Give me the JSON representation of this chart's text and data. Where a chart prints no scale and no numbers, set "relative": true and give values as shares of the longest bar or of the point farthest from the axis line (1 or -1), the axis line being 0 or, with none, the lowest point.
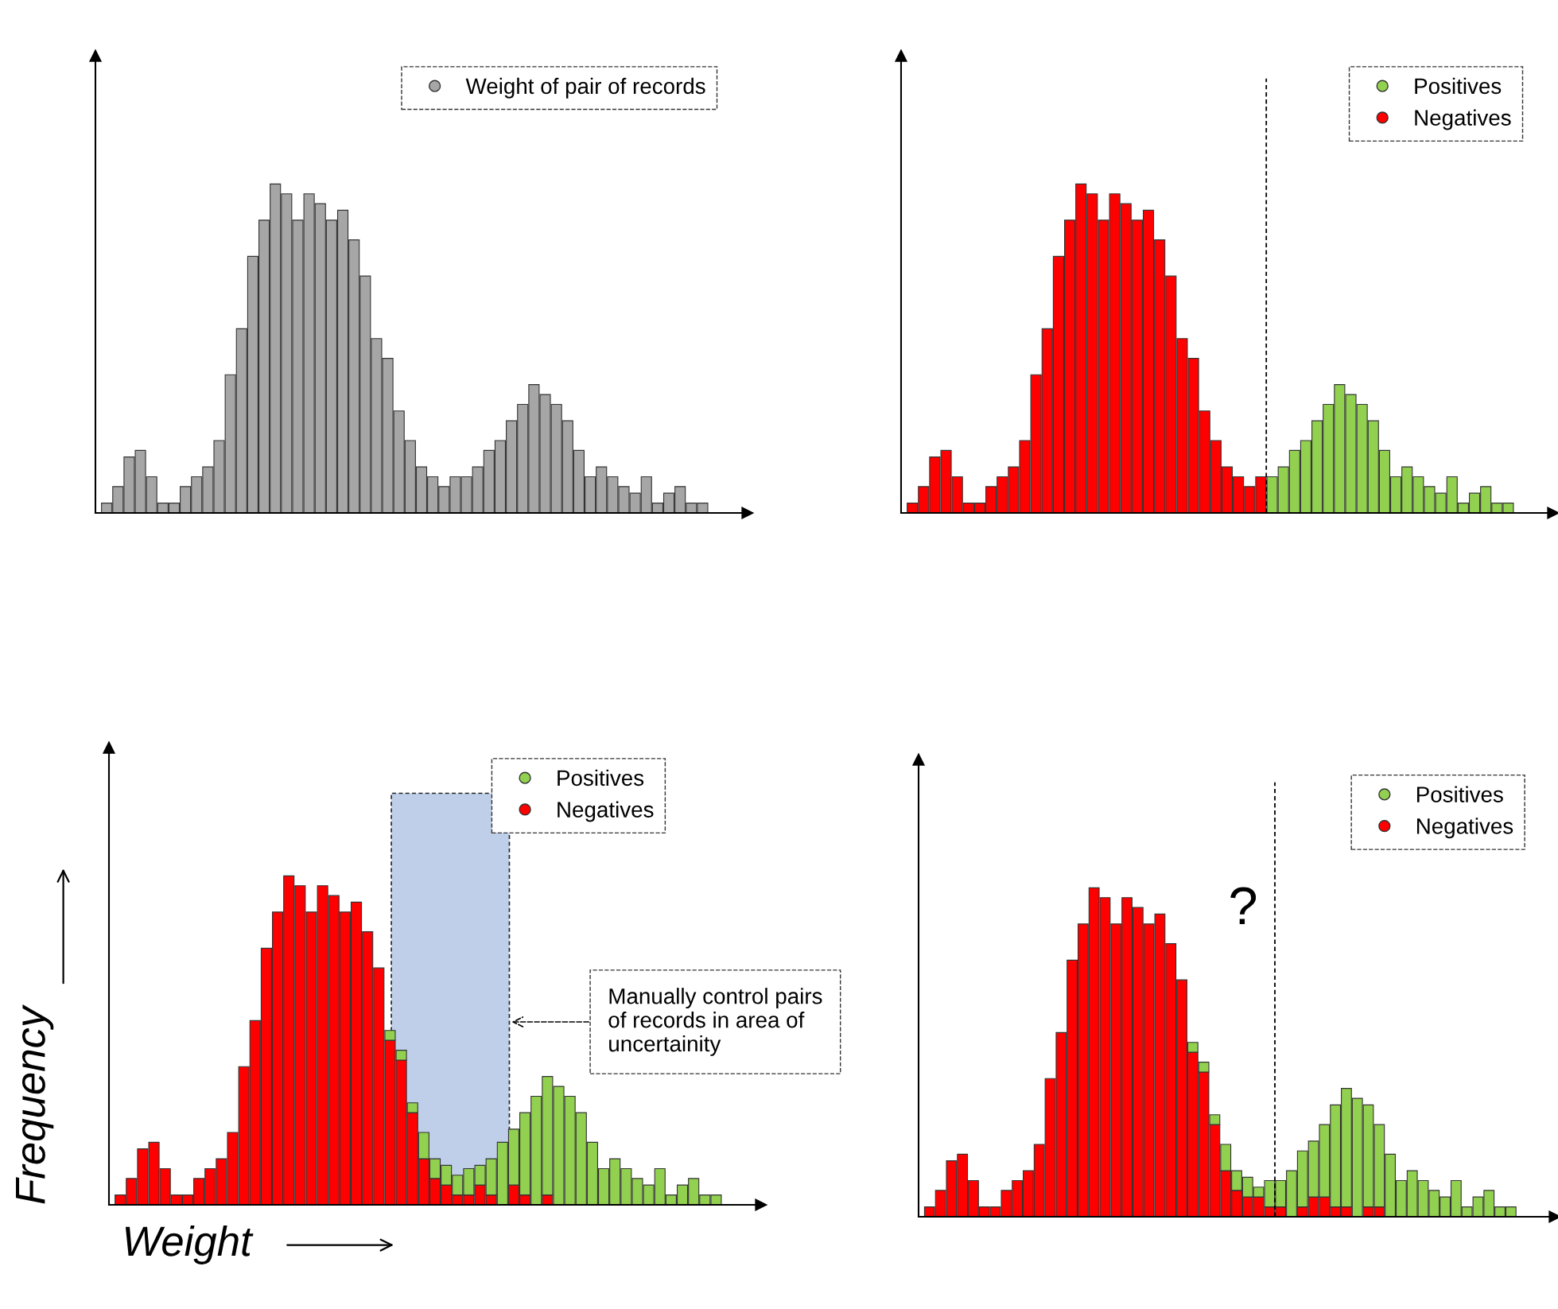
{
  "chart_data": [
    {
      "type": "bar",
      "relative": true,
      "stacked": true,
      "legend": "top right",
      "categories": [
        null,
        null,
        null,
        null,
        null,
        null,
        null,
        null,
        null,
        null,
        null,
        null,
        null,
        null,
        null,
        null,
        null,
        null,
        null,
        null,
        null,
        null,
        null,
        null,
        null,
        null,
        null,
        null,
        null,
        null,
        null,
        null,
        null,
        null,
        null,
        null,
        null,
        null,
        null,
        null,
        null,
        null,
        null,
        null,
        null,
        null,
        null,
        null,
        null,
        null,
        null,
        null,
        null,
        null
      ],
      "series": [
        {
          "name": "Weight of pair of records",
          "color": "#a6a6a6",
          "values": [
            0.03,
            0.08,
            0.17,
            0.19,
            0.11,
            0.03,
            0.03,
            0.08,
            0.11,
            0.14,
            0.22,
            0.42,
            0.56,
            0.78,
            0.89,
            1,
            0.97,
            0.89,
            0.97,
            0.94,
            0.89,
            0.92,
            0.83,
            0.72,
            0.53,
            0.47,
            0.31,
            0.22,
            0.14,
            0.11,
            0.08,
            0.11,
            0.11,
            0.14,
            0.19,
            0.22,
            0.28,
            0.33,
            0.39,
            0.36,
            0.33,
            0.28,
            0.19,
            0.11,
            0.14,
            0.11,
            0.08,
            0.06,
            0.11,
            0.03,
            0.06,
            0.08,
            0.03,
            0.03
          ]
        }
      ]
    },
    {
      "type": "bar",
      "relative": true,
      "stacked": true,
      "legend": "top right",
      "categories": [
        null,
        null,
        null,
        null,
        null,
        null,
        null,
        null,
        null,
        null,
        null,
        null,
        null,
        null,
        null,
        null,
        null,
        null,
        null,
        null,
        null,
        null,
        null,
        null,
        null,
        null,
        null,
        null,
        null,
        null,
        null,
        null,
        null,
        null,
        null,
        null,
        null,
        null,
        null,
        null,
        null,
        null,
        null,
        null,
        null,
        null,
        null,
        null,
        null,
        null,
        null,
        null,
        null,
        null
      ],
      "series": [
        {
          "name": "Negatives",
          "color": "#ff0000",
          "values": [
            0.03,
            0.08,
            0.17,
            0.19,
            0.11,
            0.03,
            0.03,
            0.08,
            0.11,
            0.14,
            0.22,
            0.42,
            0.56,
            0.78,
            0.89,
            1,
            0.97,
            0.89,
            0.97,
            0.94,
            0.89,
            0.92,
            0.83,
            0.72,
            0.53,
            0.47,
            0.31,
            0.22,
            0.14,
            0.11,
            0.08,
            0.11,
            null,
            null,
            null,
            null,
            null,
            null,
            null,
            null,
            null,
            null,
            null,
            null,
            null,
            null,
            null,
            null,
            null,
            null,
            null,
            null,
            null,
            null
          ]
        },
        {
          "name": "Positives",
          "color": "#92d050",
          "values": [
            null,
            null,
            null,
            null,
            null,
            null,
            null,
            null,
            null,
            null,
            null,
            null,
            null,
            null,
            null,
            null,
            null,
            null,
            null,
            null,
            null,
            null,
            null,
            null,
            null,
            null,
            null,
            null,
            null,
            null,
            null,
            null,
            0.11,
            0.14,
            0.19,
            0.22,
            0.28,
            0.33,
            0.39,
            0.36,
            0.33,
            0.28,
            0.19,
            0.11,
            0.14,
            0.11,
            0.08,
            0.06,
            0.11,
            0.03,
            0.06,
            0.08,
            0.03,
            0.03
          ]
        }
      ],
      "legend_title": null
    },
    {
      "type": "bar",
      "relative": true,
      "stacked": true,
      "legend": "top",
      "xlabel": "Weight",
      "ylabel": "Frequency",
      "categories": [
        null,
        null,
        null,
        null,
        null,
        null,
        null,
        null,
        null,
        null,
        null,
        null,
        null,
        null,
        null,
        null,
        null,
        null,
        null,
        null,
        null,
        null,
        null,
        null,
        null,
        null,
        null,
        null,
        null,
        null,
        null,
        null,
        null,
        null,
        null,
        null,
        null,
        null,
        null,
        null,
        null,
        null,
        null,
        null,
        null,
        null,
        null,
        null,
        null,
        null,
        null,
        null,
        null,
        null
      ],
      "series": [
        {
          "name": "Negatives",
          "color": "#ff0000",
          "values": [
            0.03,
            0.08,
            0.17,
            0.19,
            0.11,
            0.03,
            0.03,
            0.08,
            0.11,
            0.14,
            0.22,
            0.42,
            0.56,
            0.78,
            0.89,
            1,
            0.97,
            0.89,
            0.97,
            0.94,
            0.89,
            0.92,
            0.83,
            0.72,
            0.5,
            0.44,
            0.28,
            0.14,
            0.08,
            0.06,
            0.03,
            0.03,
            0.06,
            0.03,
            0,
            0.06,
            0.03,
            0,
            0.03,
            0,
            0,
            0,
            0,
            0,
            0,
            0,
            0,
            0,
            0,
            0,
            0,
            0,
            0,
            0
          ]
        },
        {
          "name": "Positives",
          "color": "#92d050",
          "values": [
            0,
            0,
            0,
            0,
            0,
            0,
            0,
            0,
            0,
            0,
            0,
            0,
            0,
            0,
            0,
            0,
            0,
            0,
            0,
            0,
            0,
            0,
            0,
            0,
            0.03,
            0.03,
            0.03,
            0.08,
            0.06,
            0.06,
            0.06,
            0.08,
            0.06,
            0.11,
            0.19,
            0.17,
            0.25,
            0.33,
            0.36,
            0.36,
            0.33,
            0.28,
            0.19,
            0.11,
            0.14,
            0.11,
            0.08,
            0.06,
            0.11,
            0.03,
            0.06,
            0.08,
            0.03,
            0.03
          ]
        }
      ],
      "annotations": [
        "Manually control pairs\nof records in area of\nuncertainity"
      ]
    },
    {
      "type": "bar",
      "relative": true,
      "stacked": true,
      "legend": "top right",
      "categories": [
        null,
        null,
        null,
        null,
        null,
        null,
        null,
        null,
        null,
        null,
        null,
        null,
        null,
        null,
        null,
        null,
        null,
        null,
        null,
        null,
        null,
        null,
        null,
        null,
        null,
        null,
        null,
        null,
        null,
        null,
        null,
        null,
        null,
        null,
        null,
        null,
        null,
        null,
        null,
        null,
        null,
        null,
        null,
        null,
        null,
        null,
        null,
        null,
        null,
        null,
        null,
        null,
        null,
        null
      ],
      "series": [
        {
          "name": "Negatives",
          "color": "#ff0000",
          "values": [
            0.03,
            0.08,
            0.17,
            0.19,
            0.11,
            0.03,
            0.03,
            0.08,
            0.11,
            0.14,
            0.22,
            0.42,
            0.56,
            0.78,
            0.89,
            1,
            0.97,
            0.89,
            0.97,
            0.94,
            0.89,
            0.92,
            0.83,
            0.72,
            0.5,
            0.44,
            0.28,
            0.14,
            0.08,
            0.06,
            0.06,
            0.03,
            0.03,
            0,
            0.03,
            0.06,
            0.06,
            0.03,
            0.03,
            0,
            0.03,
            0.03,
            0,
            0,
            0,
            0,
            0,
            0,
            0,
            0,
            0,
            0,
            0,
            0
          ]
        },
        {
          "name": "Positives",
          "color": "#92d050",
          "values": [
            0,
            0,
            0,
            0,
            0,
            0,
            0,
            0,
            0,
            0,
            0,
            0,
            0,
            0,
            0,
            0,
            0,
            0,
            0,
            0,
            0,
            0,
            0,
            0,
            0.03,
            0.03,
            0.03,
            0.08,
            0.06,
            0.06,
            0.03,
            0.08,
            0.08,
            0.14,
            0.17,
            0.17,
            0.22,
            0.31,
            0.36,
            0.36,
            0.31,
            0.25,
            0.19,
            0.11,
            0.14,
            0.11,
            0.08,
            0.06,
            0.11,
            0.03,
            0.06,
            0.08,
            0.03,
            0.03
          ]
        }
      ],
      "annotations": [
        "?"
      ]
    }
  ]
}
